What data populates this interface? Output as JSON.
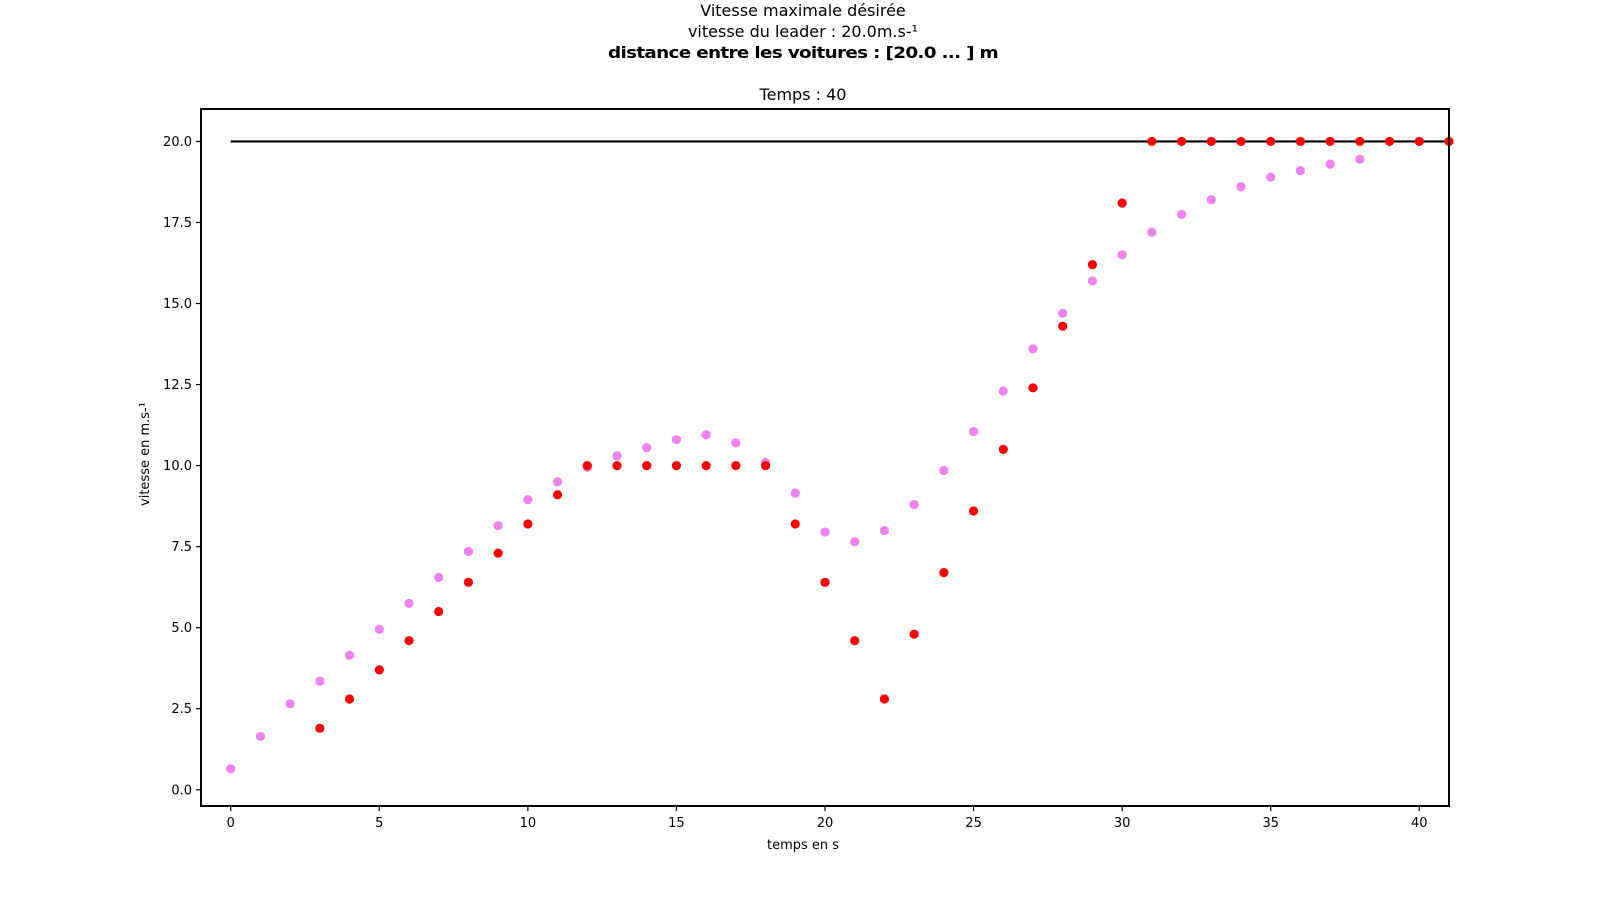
{
  "chart_data": {
    "type": "scatter",
    "title_lines": [
      "Vitesse maximale désirée",
      "vitesse du leader : 20.0m.s-¹"
    ],
    "overlapping_title_line": "distance entre les voitures : [20.0 ... ] m",
    "subtitle": "Temps : 40",
    "xlabel": "temps en s",
    "ylabel": "vitesse en m.s-¹",
    "xlim": [
      -1,
      41
    ],
    "ylim": [
      -0.5,
      21
    ],
    "x_ticks": [
      0,
      5,
      10,
      15,
      20,
      25,
      30,
      35,
      40
    ],
    "y_ticks": [
      0.0,
      2.5,
      5.0,
      7.5,
      10.0,
      12.5,
      15.0,
      17.5,
      20.0
    ],
    "grid": false,
    "reference_line": {
      "y": 20.0,
      "x_start": 0,
      "x_end": 41,
      "color": "#000000"
    },
    "series": [
      {
        "color": "#ee82ee",
        "points": [
          [
            0,
            0.65
          ],
          [
            1,
            1.65
          ],
          [
            2,
            2.65
          ],
          [
            3,
            3.35
          ],
          [
            4,
            4.15
          ],
          [
            5,
            4.95
          ],
          [
            6,
            5.75
          ],
          [
            7,
            6.55
          ],
          [
            8,
            7.35
          ],
          [
            9,
            8.15
          ],
          [
            10,
            8.95
          ],
          [
            11,
            9.5
          ],
          [
            12,
            9.95
          ],
          [
            13,
            10.3
          ],
          [
            14,
            10.55
          ],
          [
            15,
            10.8
          ],
          [
            16,
            10.95
          ],
          [
            17,
            10.7
          ],
          [
            18,
            10.1
          ],
          [
            19,
            9.15
          ],
          [
            20,
            7.95
          ],
          [
            21,
            7.65
          ],
          [
            22,
            8.0
          ],
          [
            23,
            8.8
          ],
          [
            24,
            9.85
          ],
          [
            25,
            11.05
          ],
          [
            26,
            12.3
          ],
          [
            27,
            13.6
          ],
          [
            28,
            14.7
          ],
          [
            29,
            15.7
          ],
          [
            30,
            16.5
          ],
          [
            31,
            17.2
          ],
          [
            32,
            17.75
          ],
          [
            33,
            18.2
          ],
          [
            34,
            18.6
          ],
          [
            35,
            18.9
          ],
          [
            36,
            19.1
          ],
          [
            37,
            19.3
          ],
          [
            38,
            19.45
          ]
        ]
      },
      {
        "color": "#ff0000",
        "points": [
          [
            3,
            1.9
          ],
          [
            4,
            2.8
          ],
          [
            5,
            3.7
          ],
          [
            6,
            4.6
          ],
          [
            7,
            5.5
          ],
          [
            8,
            6.4
          ],
          [
            9,
            7.3
          ],
          [
            10,
            8.2
          ],
          [
            11,
            9.1
          ],
          [
            12,
            10.0
          ],
          [
            13,
            10.0
          ],
          [
            14,
            10.0
          ],
          [
            15,
            10.0
          ],
          [
            16,
            10.0
          ],
          [
            17,
            10.0
          ],
          [
            18,
            10.0
          ],
          [
            19,
            8.2
          ],
          [
            20,
            6.4
          ],
          [
            21,
            4.6
          ],
          [
            22,
            2.8
          ],
          [
            23,
            4.8
          ],
          [
            24,
            6.7
          ],
          [
            25,
            8.6
          ],
          [
            26,
            10.5
          ],
          [
            27,
            12.4
          ],
          [
            28,
            14.3
          ],
          [
            29,
            16.2
          ],
          [
            30,
            18.1
          ],
          [
            31,
            20.0
          ],
          [
            32,
            20.0
          ],
          [
            33,
            20.0
          ],
          [
            34,
            20.0
          ],
          [
            35,
            20.0
          ],
          [
            36,
            20.0
          ],
          [
            37,
            20.0
          ],
          [
            38,
            20.0
          ],
          [
            39,
            20.0
          ],
          [
            40,
            20.0
          ],
          [
            41,
            20.0
          ]
        ]
      }
    ]
  }
}
